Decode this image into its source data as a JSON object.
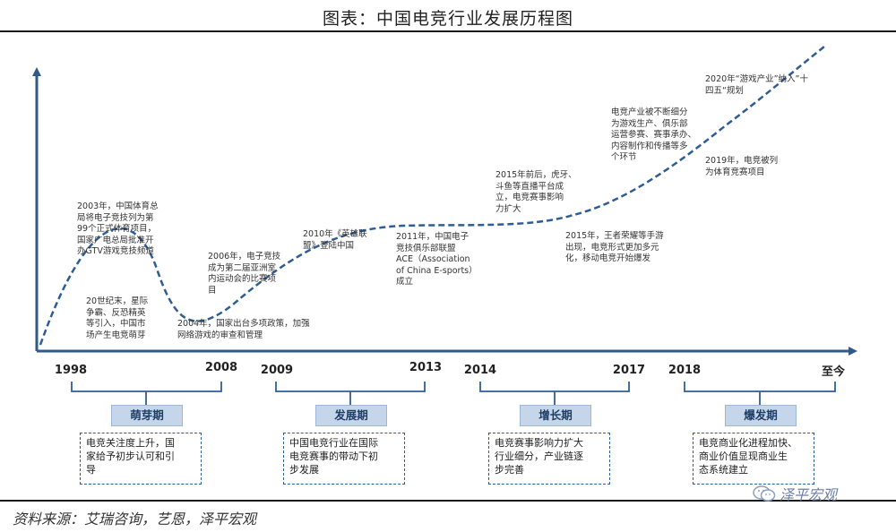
{
  "title": "图表：中国电竞行业发展历程图",
  "annotations": {
    "a1998": "20世纪末，星际\n争霸、反恐精英\n等引入，中国市\n场产生电竞萌芽",
    "a2003": "2003年，中国体育总\n局将电子竞技列为第\n99个正式体育项目，\n国家广电总局批准开\n办GTV游戏竞技频道",
    "a2004": "2004年，国家出台多项政策，加强\n网络游戏的审查和管理",
    "a2006": "2006年，电子竞技\n成为第二届亚洲室\n内运动会的比赛项\n目",
    "a2010": "2010年《英雄联\n盟》登陆中国",
    "a2011": "2011年，中国电子\n竞技俱乐部联盟\nACE（Association\nof China E-sports）\n成立",
    "a2015a": "2015年前后，虎牙、\n斗鱼等直播平台成\n立，电竞赛事影响\n力扩大",
    "a2015b": "2015年，王者荣耀等手游\n出现，电竞形式更加多元\n化，移动电竞开始爆发",
    "a2017": "电竞产业被不断细分\n为游戏生产、俱乐部\n运营参赛、赛事承办、\n内容制作和传播等多\n个环节",
    "a2019": "2019年，电竞被列\n为体育竞赛项目",
    "a2020": "2020年“游戏产业”纳入”十\n四五“规划"
  },
  "years": [
    "1998",
    "2008",
    "2009",
    "2013",
    "2014",
    "2017",
    "2018",
    "至今"
  ],
  "phases": [
    {
      "label": "萌芽期",
      "desc": "电竞关注度上升，国\n家给予初步认可和引\n导"
    },
    {
      "label": "发展期",
      "desc": "中国电竞行业在国际\n电竞赛事的带动下初\n步发展"
    },
    {
      "label": "增长期",
      "desc": "电竞赛事影响力扩大\n行业细分，产业链逐\n步完善"
    },
    {
      "label": "爆发期",
      "desc": "电竞商业化进程加快、\n商业价值显现商业生\n态系统建立"
    }
  ],
  "source": "资料来源：艾瑞咨询，艺恩，泽平宏观",
  "watermark": "泽平宏观",
  "colors": {
    "axis": "#2f5a8a",
    "curve": "#2e5d96",
    "phase_fill": "#c5d6ea",
    "bracket": "#2f5f9a"
  },
  "icons": {
    "watermark": "wechat-icon"
  }
}
